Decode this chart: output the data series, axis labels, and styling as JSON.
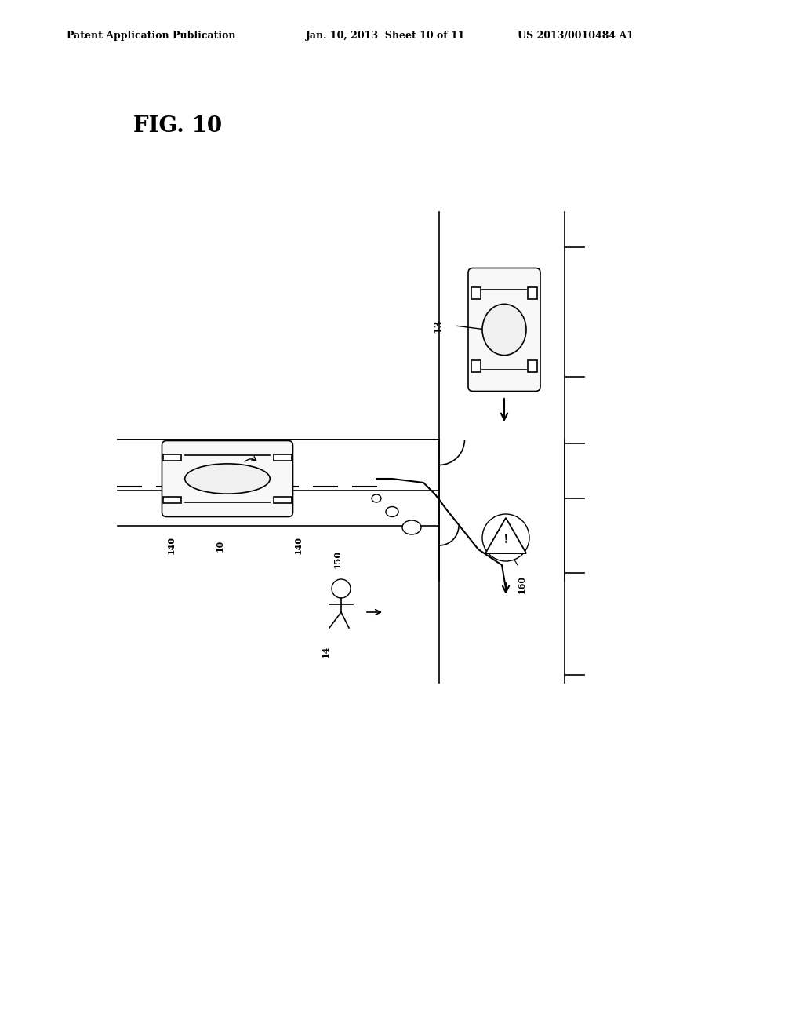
{
  "bg_color": "#ffffff",
  "title_text": "FIG. 10",
  "header_left": "Patent Application Publication",
  "header_mid": "Jan. 10, 2013  Sheet 10 of 11",
  "header_right": "US 2013/0010484 A1",
  "header_fontsize": 9,
  "title_fontsize": 20
}
